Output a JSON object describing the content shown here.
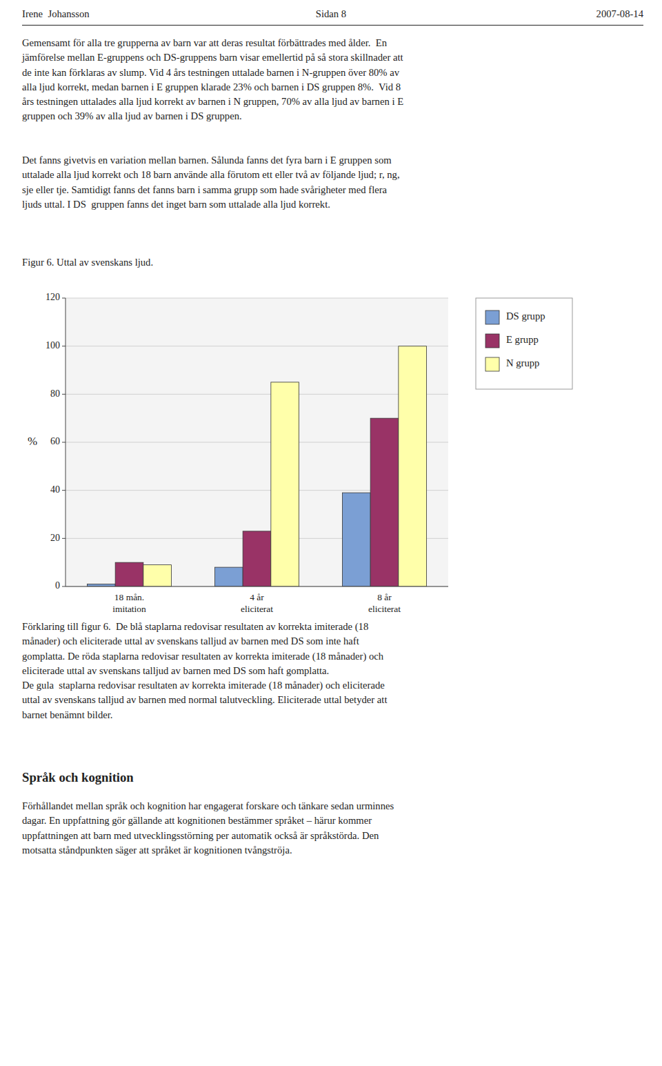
{
  "header_left": "Irene  Johansson",
  "header_center": "Sidan 8",
  "header_right": "2007-08-14",
  "paragraphs_before": [
    "Gemensamt för alla tre grupperna av barn var att deras resultat förbättrades med ålder.  En\njämförelse mellan E-gruppens och DS-gruppens barn visar emellertid på så stora skillnader att\nde inte kan förklaras av slump. Vid 4 års testningen uttalade barnen i N-gruppen över 80% av\nalla ljud korrekt, medan barnen i E gruppen klarade 23% och barnen i DS gruppen 8%.  Vid 8\nårs testningen uttalades alla ljud korrekt av barnen i N gruppen, 70% av alla ljud av barnen i E\ngruppen och 39% av alla ljud av barnen i DS gruppen.",
    "Det fanns givetvis en variation mellan barnen. Sålunda fanns det fyra barn i E gruppen som\nuttalade alla ljud korrekt och 18 barn använde alla förutom ett eller två av följande ljud; r, ng,\nsje eller tje. Samtidigt fanns det fanns barn i samma grupp som hade svårigheter med flera\nljuds uttal. I DS  gruppen fanns det inget barn som uttalade alla ljud korrekt."
  ],
  "figure_label": "Figur 6. Uttal av svenskans ljud.",
  "chart_data": {
    "type": "bar",
    "categories": [
      "18 mån.\nimitation",
      "4 år\neliciterat",
      "8 år\neliciterat"
    ],
    "series": [
      {
        "name": "DS grupp",
        "color": "#7B9FD4",
        "values": [
          1,
          8,
          39
        ]
      },
      {
        "name": "E grupp",
        "color": "#993366",
        "values": [
          10,
          23,
          70
        ]
      },
      {
        "name": "N grupp",
        "color": "#FFFFAA",
        "values": [
          9,
          85,
          100
        ]
      }
    ],
    "y_label": "%",
    "ylim": [
      0,
      120
    ],
    "yticks": [
      0,
      20,
      40,
      60,
      80,
      100,
      120
    ],
    "grid": true,
    "legend": "right"
  },
  "paragraphs_after": [
    "Förklaring till figur 6.  De blå staplarna redovisar resultaten av korrekta imiterade (18\nmånader) och eliciterade uttal av svenskans talljud av barnen med DS som inte haft\ngomplatta. De röda staplarna redovisar resultaten av korrekta imiterade (18 månader) och\neliciterade uttal av svenskans talljud av barnen med DS som haft gomplatta.\nDe gula  staplarna redovisar resultaten av korrekta imiterade (18 månader) och eliciterade\nuttal av svenskans talljud av barnen med normal talutveckling. Eliciterade uttal betyder att\nbarnet benämnt bilder."
  ],
  "section_title": "Språk och kognition",
  "section_paragraphs": [
    "Förhållandet mellan språk och kognition har engagerat forskare och tänkare sedan urminnes\ndagar. En uppfattning gör gällande att kognitionen bestämmer språket – härur kommer\nuppfattningen att barn med utvecklingsstörning per automatik också är språkstörda. Den\nmotsatta ståndpunkten säger att språket är kognitionen tvångströja."
  ]
}
